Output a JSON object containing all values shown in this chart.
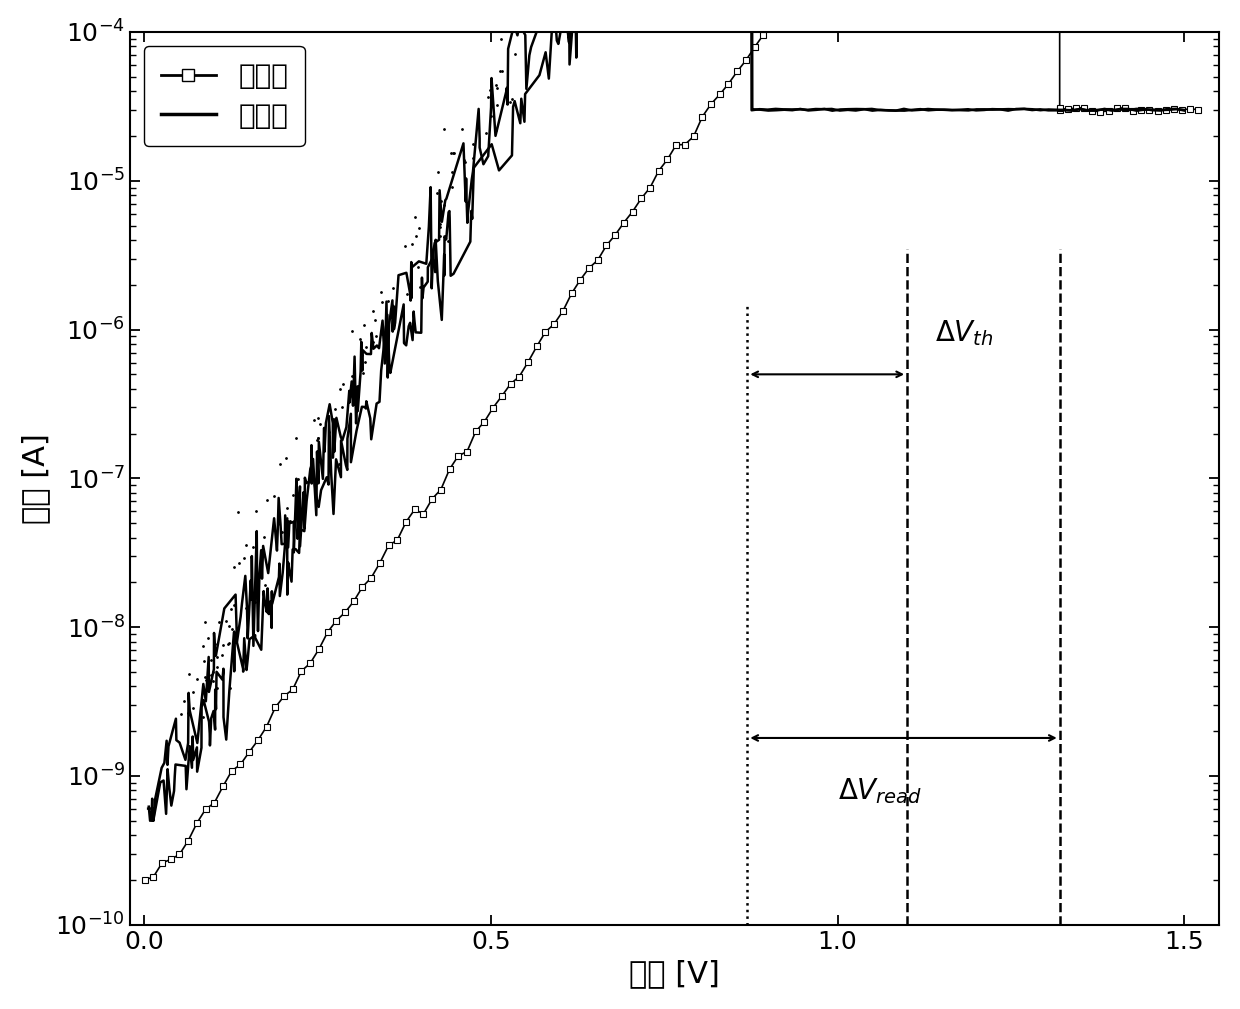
{
  "xlabel": "电压 [V]",
  "ylabel": "电流 [A]",
  "xlim": [
    -0.02,
    1.55
  ],
  "ylim_log": [
    -10,
    -4
  ],
  "legend_label_hrs": "高阻态",
  "legend_label_lrs": "低阻态",
  "dotted_line_x": 0.87,
  "dashed_line1_x": 1.1,
  "dashed_line2_x": 1.32,
  "background_color": "#ffffff",
  "xlabel_fontsize": 22,
  "ylabel_fontsize": 22,
  "tick_fontsize": 18,
  "legend_fontsize": 20,
  "annotation_fontsize": 20,
  "hrs_color": "#888888",
  "lrs_color": "#000000",
  "hrs_jump_v": 1.32,
  "lrs_jump_v": 0.875,
  "sat_current": 3e-05
}
